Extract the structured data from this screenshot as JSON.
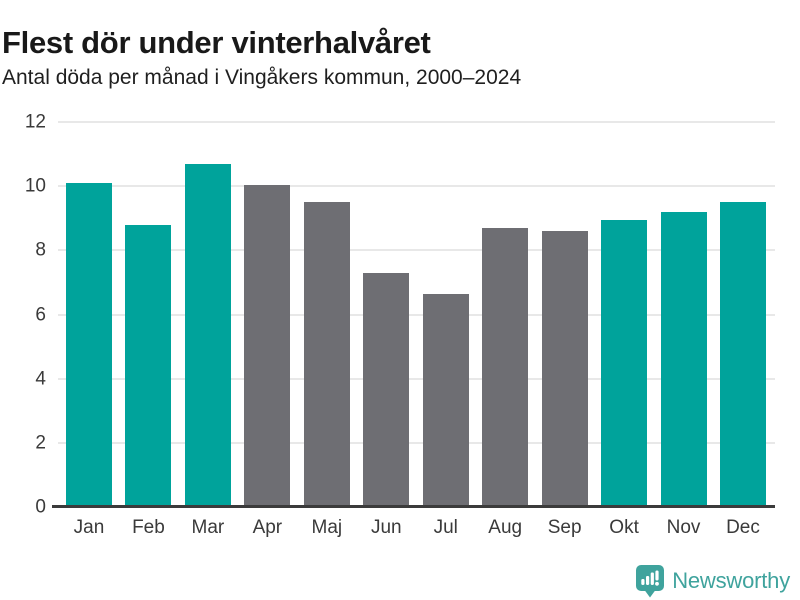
{
  "header": {
    "title": "Flest dör under vinterhalvåret",
    "subtitle": "Antal döda per månad i Vingåkers kommun, 2000–2024"
  },
  "chart_data": {
    "type": "bar",
    "title": "Flest dör under vinterhalvåret",
    "subtitle": "Antal döda per månad i Vingåkers kommun, 2000–2024",
    "categories": [
      "Jan",
      "Feb",
      "Mar",
      "Apr",
      "Maj",
      "Jun",
      "Jul",
      "Aug",
      "Sep",
      "Okt",
      "Nov",
      "Dec"
    ],
    "values": [
      10.1,
      8.8,
      10.7,
      10.05,
      9.5,
      7.3,
      6.65,
      8.7,
      8.6,
      8.95,
      9.2,
      9.5
    ],
    "bar_colors": [
      "#00a39b",
      "#00a39b",
      "#00a39b",
      "#6e6e73",
      "#6e6e73",
      "#6e6e73",
      "#6e6e73",
      "#6e6e73",
      "#6e6e73",
      "#00a39b",
      "#00a39b",
      "#00a39b"
    ],
    "xlabel": "",
    "ylabel": "",
    "ylim": [
      0,
      12
    ],
    "yticks": [
      0,
      2,
      4,
      6,
      8,
      10,
      12
    ],
    "grid": true,
    "legend_position": "none",
    "highlight_color": "#00a39b",
    "muted_color": "#6e6e73"
  },
  "footer": {
    "brand": "Newsworthy",
    "brand_color": "#3fa39d",
    "logo_icon": "bar-chart-speech-bubble-icon"
  }
}
